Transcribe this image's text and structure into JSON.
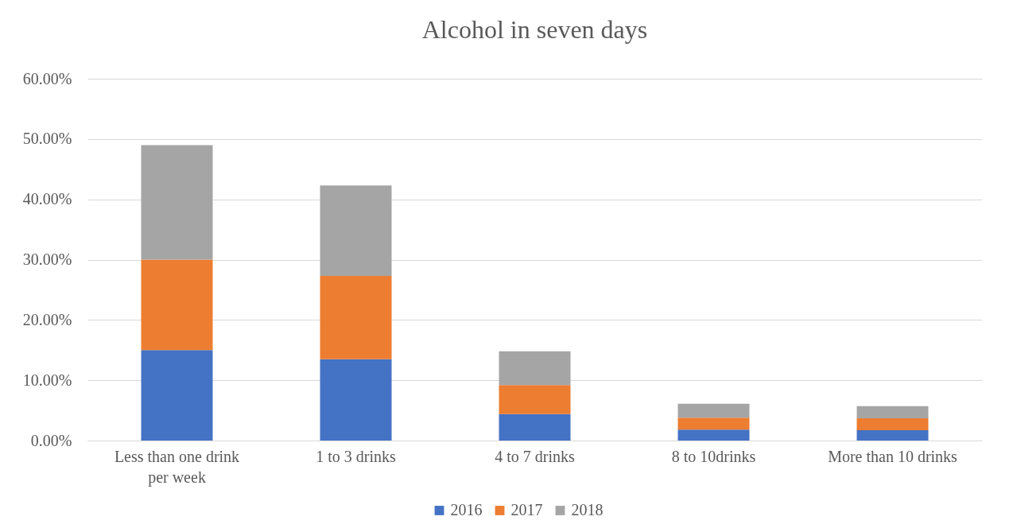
{
  "chart_data": {
    "type": "bar",
    "title": "Alcohol in seven days",
    "categories": [
      "Less than one drink per week",
      "1 to 3 drinks",
      "4 to 7 drinks",
      "8 to 10drinks",
      "More than 10 drinks"
    ],
    "series": [
      {
        "name": "2016",
        "color": "#4472c4",
        "values": [
          15.0,
          13.5,
          4.4,
          1.8,
          1.7
        ]
      },
      {
        "name": "2017",
        "color": "#ed7d31",
        "values": [
          15.0,
          13.8,
          4.8,
          2.0,
          2.0
        ]
      },
      {
        "name": "2018",
        "color": "#a5a5a5",
        "values": [
          19.0,
          15.0,
          5.6,
          2.3,
          2.0
        ]
      }
    ],
    "stacked": true,
    "ylim": [
      0,
      60
    ],
    "yticks": [
      {
        "value": 0,
        "label": "0.00%"
      },
      {
        "value": 10,
        "label": "10.00%"
      },
      {
        "value": 20,
        "label": "20.00%"
      },
      {
        "value": 30,
        "label": "30.00%"
      },
      {
        "value": 40,
        "label": "40.00%"
      },
      {
        "value": 50,
        "label": "50.00%"
      },
      {
        "value": 60,
        "label": "60.00%"
      }
    ],
    "grid": "y",
    "legend": "bottom"
  }
}
